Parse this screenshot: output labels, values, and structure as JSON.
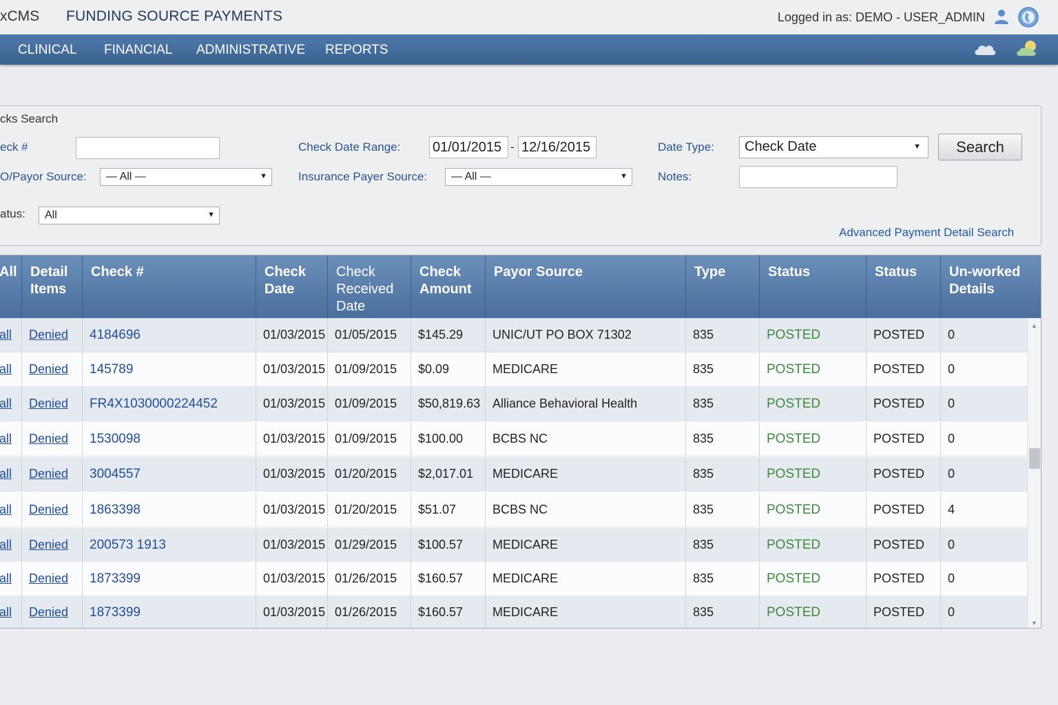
{
  "header": {
    "brand": "xCMS",
    "title": "FUNDING SOURCE PAYMENTS",
    "login_text": "Logged in as: DEMO - USER_ADMIN"
  },
  "nav": {
    "items": [
      "CLINICAL",
      "FINANCIAL",
      "ADMINISTRATIVE",
      "REPORTS"
    ]
  },
  "search": {
    "title": "cks Search",
    "check_label": "eck #",
    "check_value": "",
    "date_range_label": "Check Date Range:",
    "date_from": "01/01/2015",
    "date_sep": "-",
    "date_to": "12/16/2015",
    "date_type_label": "Date Type:",
    "date_type_value": "Check Date",
    "search_button": "Search",
    "payor_label": "O/Payor Source:",
    "payor_value": "— All —",
    "ins_payer_label": "Insurance Payer Source:",
    "ins_payer_value": "— All —",
    "notes_label": "Notes:",
    "notes_value": "",
    "status_label": "atus:",
    "status_value": "All",
    "advanced_link": "Advanced Payment Detail Search"
  },
  "table": {
    "headers": {
      "all": "All",
      "detail": "Detail Items",
      "check": "Check #",
      "check_date": "Check Date",
      "received": "Check Received Date",
      "amount": "Check Amount",
      "payor": "Payor Source",
      "type": "Type",
      "status1": "Status",
      "status2": "Status",
      "unworked": "Un-worked Details"
    },
    "rows": [
      {
        "all": "all",
        "detail": "Denied",
        "check": "4184696",
        "check_date": "01/03/2015",
        "received": "01/05/2015",
        "amount": "$145.29",
        "payor": "UNIC/UT PO BOX 71302",
        "type": "835",
        "status1": "POSTED",
        "status2": "POSTED",
        "unworked": "0"
      },
      {
        "all": "all",
        "detail": "Denied",
        "check": "145789",
        "check_date": "01/03/2015",
        "received": "01/09/2015",
        "amount": "$0.09",
        "payor": "MEDICARE",
        "type": "835",
        "status1": "POSTED",
        "status2": "POSTED",
        "unworked": "0"
      },
      {
        "all": "all",
        "detail": "Denied",
        "check": "FR4X1030000224452",
        "check_date": "01/03/2015",
        "received": "01/09/2015",
        "amount": "$50,819.63",
        "payor": "Alliance Behavioral Health",
        "type": "835",
        "status1": "POSTED",
        "status2": "POSTED",
        "unworked": "0"
      },
      {
        "all": "all",
        "detail": "Denied",
        "check": "1530098",
        "check_date": "01/03/2015",
        "received": "01/09/2015",
        "amount": "$100.00",
        "payor": "BCBS NC",
        "type": "835",
        "status1": "POSTED",
        "status2": "POSTED",
        "unworked": "0"
      },
      {
        "all": "all",
        "detail": "Denied",
        "check": "3004557",
        "check_date": "01/03/2015",
        "received": "01/20/2015",
        "amount": "$2,017.01",
        "payor": "MEDICARE",
        "type": "835",
        "status1": "POSTED",
        "status2": "POSTED",
        "unworked": "0"
      },
      {
        "all": "all",
        "detail": "Denied",
        "check": "1863398",
        "check_date": "01/03/2015",
        "received": "01/20/2015",
        "amount": "$51.07",
        "payor": "BCBS NC",
        "type": "835",
        "status1": "POSTED",
        "status2": "POSTED",
        "unworked": "4"
      },
      {
        "all": "all",
        "detail": "Denied",
        "check": "200573 1913",
        "check_date": "01/03/2015",
        "received": "01/29/2015",
        "amount": "$100.57",
        "payor": "MEDICARE",
        "type": "835",
        "status1": "POSTED",
        "status2": "POSTED",
        "unworked": "0"
      },
      {
        "all": "all",
        "detail": "Denied",
        "check": "1873399",
        "check_date": "01/03/2015",
        "received": "01/26/2015",
        "amount": "$160.57",
        "payor": "MEDICARE",
        "type": "835",
        "status1": "POSTED",
        "status2": "POSTED",
        "unworked": "0"
      },
      {
        "all": "all",
        "detail": "Denied",
        "check": "1873399",
        "check_date": "01/03/2015",
        "received": "01/26/2015",
        "amount": "$160.57",
        "payor": "MEDICARE",
        "type": "835",
        "status1": "POSTED",
        "status2": "POSTED",
        "unworked": "0"
      }
    ]
  },
  "icons": {
    "user": "user-icon",
    "globe": "globe-icon",
    "cloud": "cloud-icon",
    "weather": "weather-icon"
  },
  "colors": {
    "nav_bg": "#3a618f",
    "header_blue": "#5079ab",
    "link_blue": "#1f4e96",
    "status_green": "#3d8a3a"
  }
}
